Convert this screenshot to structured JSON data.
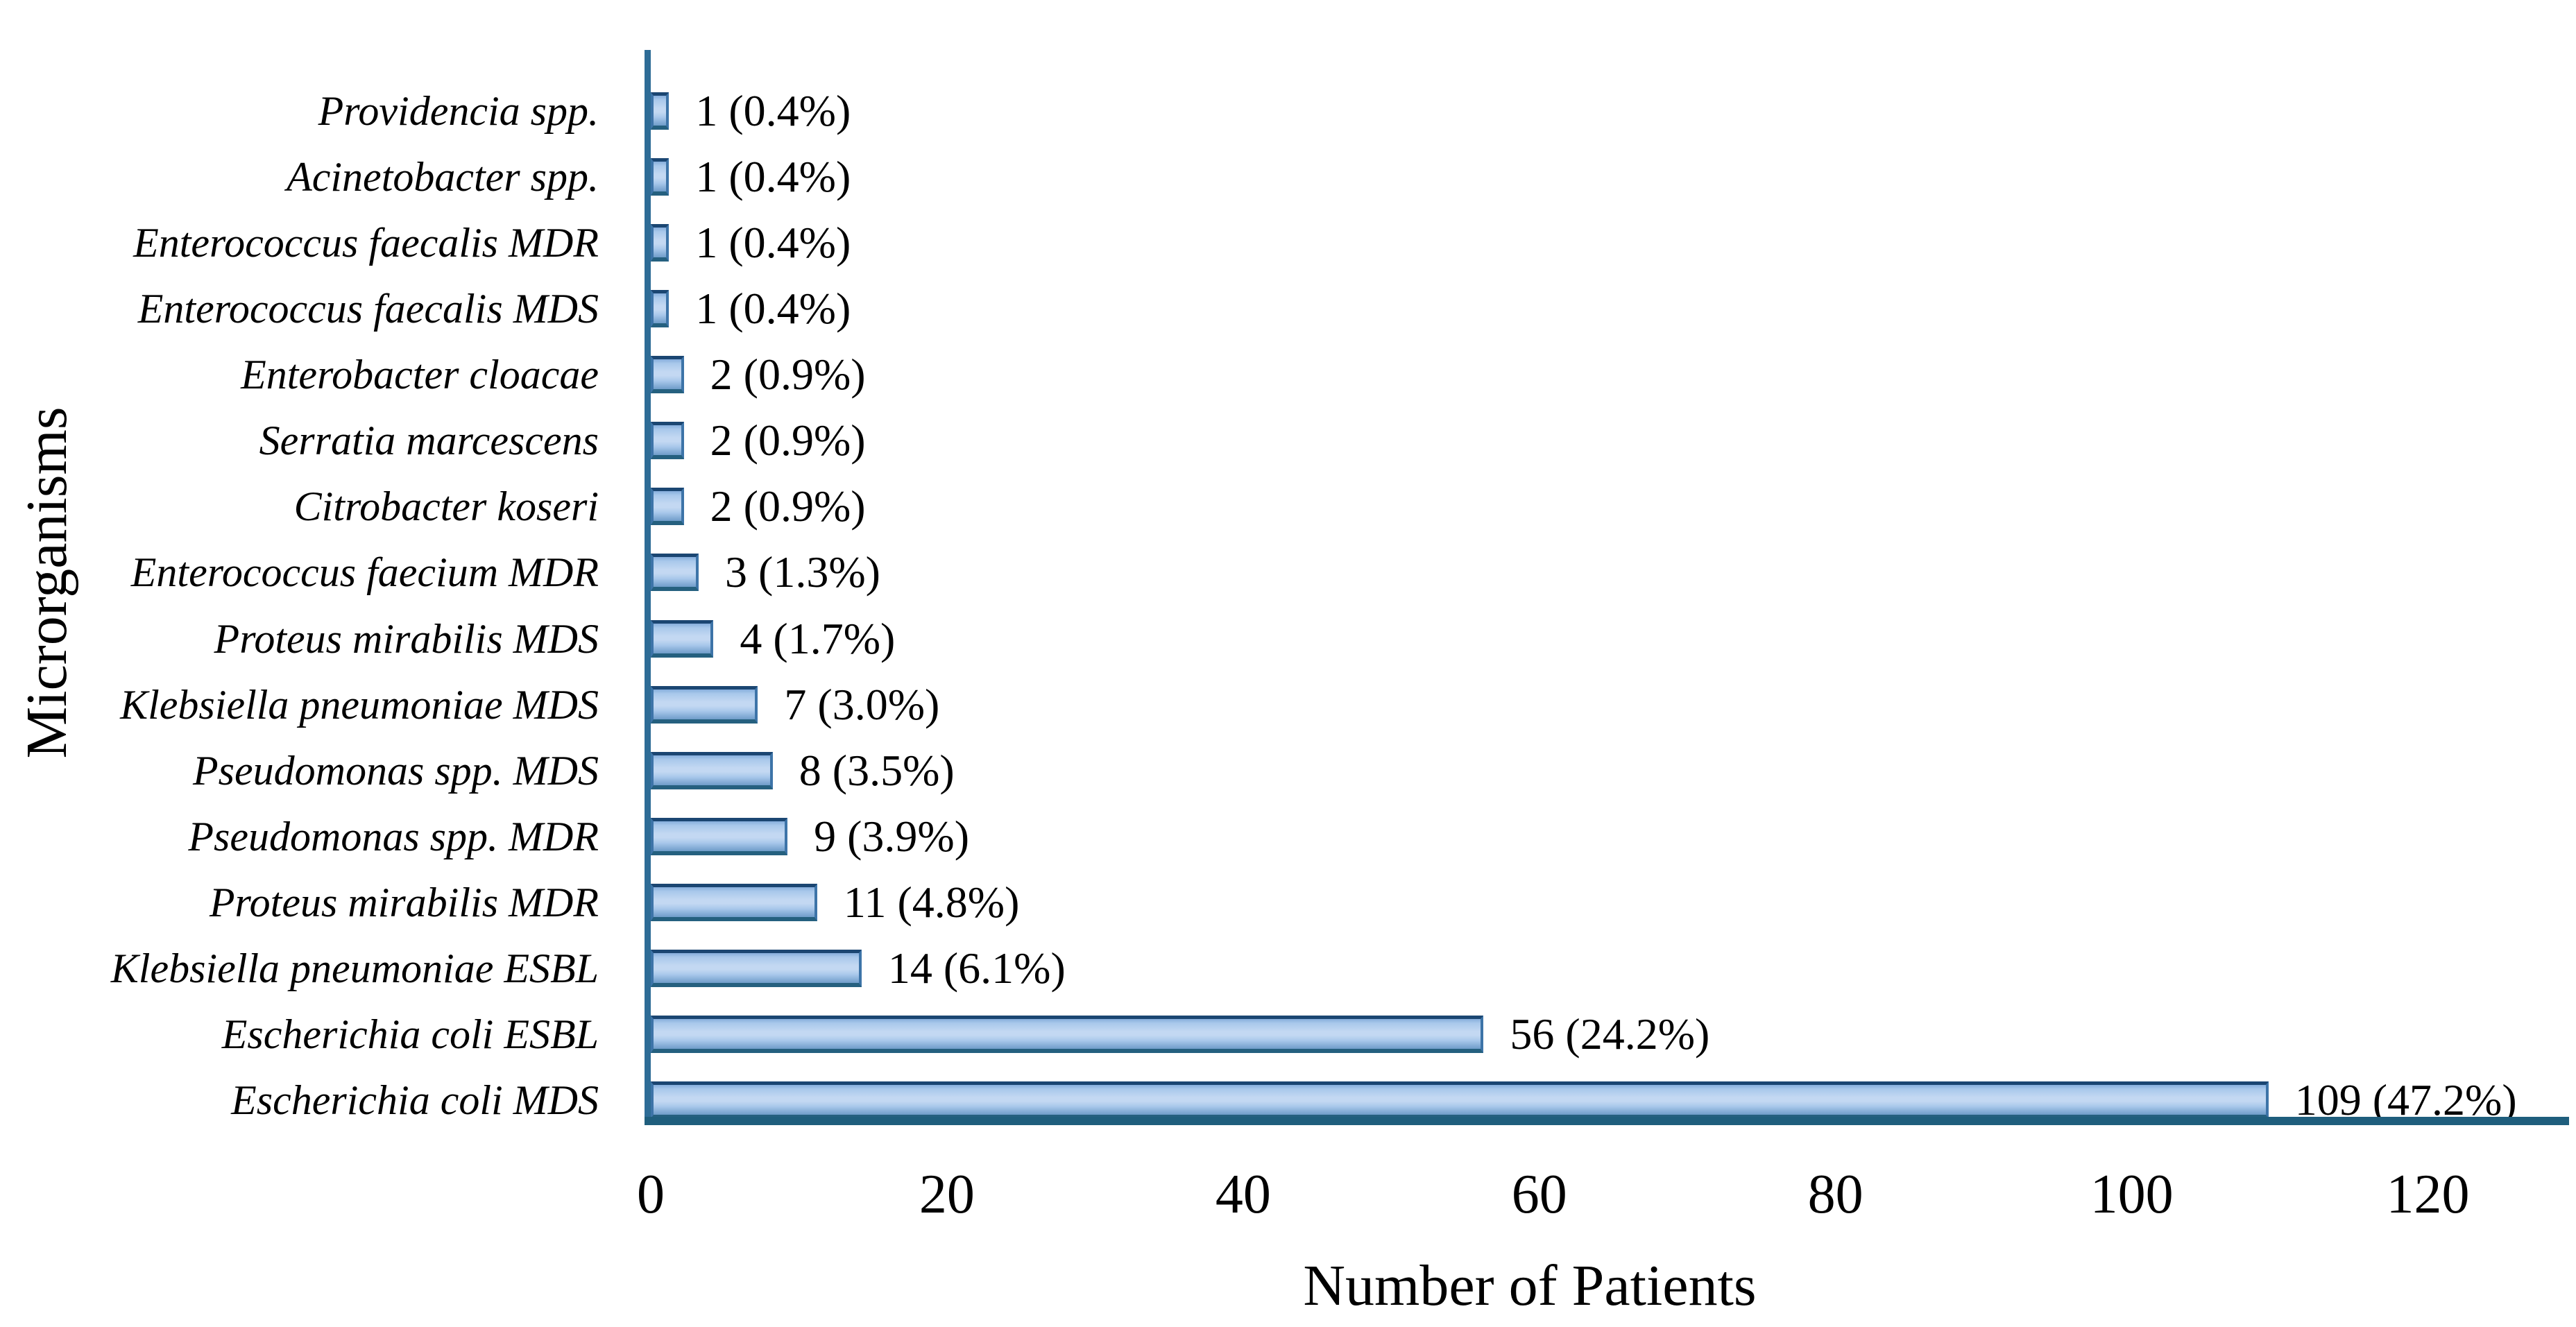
{
  "chart_data": {
    "type": "bar",
    "orientation": "horizontal",
    "title": "",
    "xlabel": "Number of Patients",
    "ylabel": "Microrganisms",
    "xlim": [
      0,
      130
    ],
    "x_ticks": [
      0,
      20,
      40,
      60,
      80,
      100,
      120
    ],
    "grid": false,
    "legend": false,
    "bars_top_to_bottom": [
      {
        "category": "Providencia spp.",
        "value": 1,
        "label": "1 (0.4%)"
      },
      {
        "category": "Acinetobacter spp.",
        "value": 1,
        "label": "1 (0.4%)"
      },
      {
        "category": "Enterococcus faecalis MDR",
        "value": 1,
        "label": "1 (0.4%)"
      },
      {
        "category": "Enterococcus faecalis MDS",
        "value": 1,
        "label": "1 (0.4%)"
      },
      {
        "category": "Enterobacter cloacae",
        "value": 2,
        "label": "2 (0.9%)"
      },
      {
        "category": "Serratia marcescens",
        "value": 2,
        "label": "2 (0.9%)"
      },
      {
        "category": "Citrobacter koseri",
        "value": 2,
        "label": "2 (0.9%)"
      },
      {
        "category": "Enterococcus faecium MDR",
        "value": 3,
        "label": "3 (1.3%)"
      },
      {
        "category": "Proteus mirabilis MDS",
        "value": 4,
        "label": "4 (1.7%)"
      },
      {
        "category": "Klebsiella pneumoniae MDS",
        "value": 7,
        "label": "7 (3.0%)"
      },
      {
        "category": "Pseudomonas spp. MDS",
        "value": 8,
        "label": "8 (3.5%)"
      },
      {
        "category": "Pseudomonas spp. MDR",
        "value": 9,
        "label": "9 (3.9%)"
      },
      {
        "category": "Proteus mirabilis MDR",
        "value": 11,
        "label": "11 (4.8%)"
      },
      {
        "category": "Klebsiella pneumoniae ESBL",
        "value": 14,
        "label": "14 (6.1%)"
      },
      {
        "category": "Escherichia coli ESBL",
        "value": 56,
        "label": "56 (24.2%)"
      },
      {
        "category": "Escherichia coli MDS",
        "value": 109,
        "label": "109 (47.2%)"
      }
    ],
    "colors": {
      "bar_gradient_top": "#86AEDC",
      "bar_gradient_light": "#C3D8F2",
      "bar_gradient_mid": "#A9C8EB",
      "bar_gradient_bottom": "#6F9CC9",
      "bar_border_top": "#1B4672",
      "bar_border_side": "#3D74A8",
      "bar_border_bottom": "#25607F",
      "y_axis_line": "#2E6C96",
      "x_axis_line": "#1F5E7D",
      "text": "#000000",
      "background": "#FFFFFF"
    }
  }
}
